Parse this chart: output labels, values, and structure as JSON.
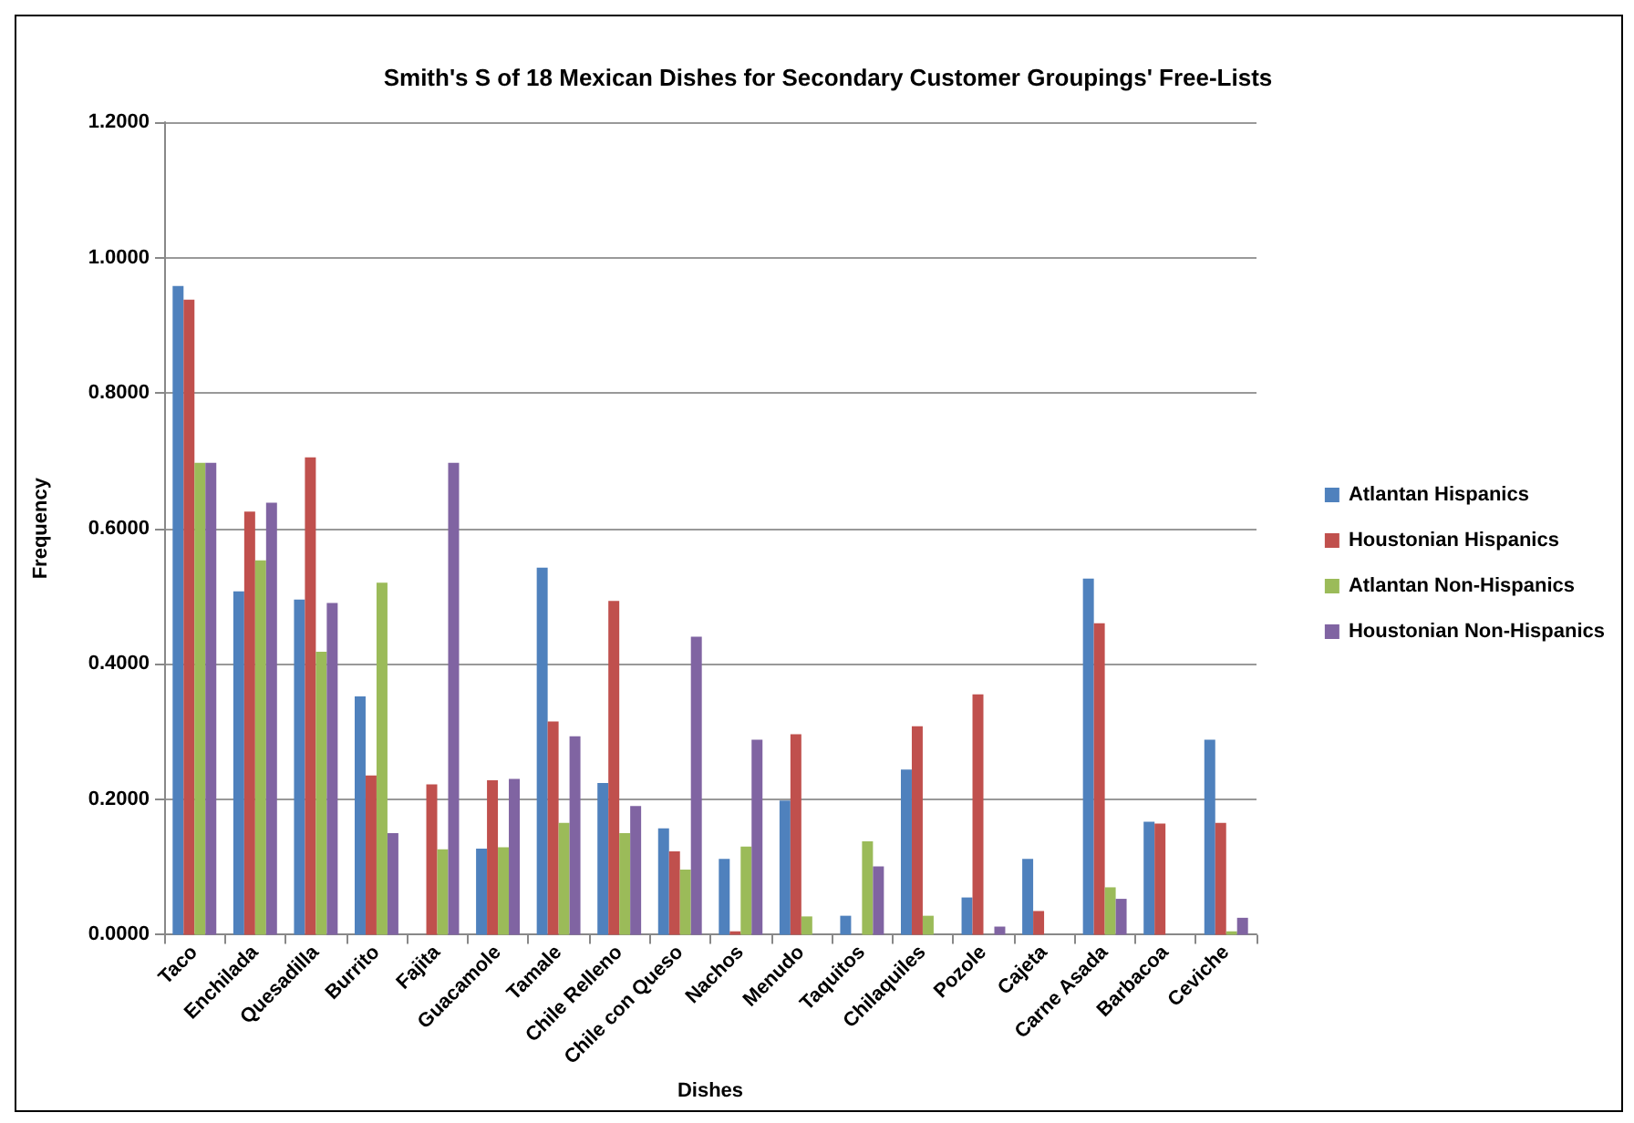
{
  "chart_data": {
    "type": "bar",
    "title": "Smith's S of 18 Mexican Dishes for Secondary Customer Groupings' Free-Lists",
    "xlabel": "Dishes",
    "ylabel": "Frequency",
    "categories": [
      "Taco",
      "Enchilada",
      "Quesadilla",
      "Burrito",
      "Fajita",
      "Guacamole",
      "Tamale",
      "Chile Relleno",
      "Chile con Queso",
      "Nachos",
      "Menudo",
      "Taquitos",
      "Chilaquiles",
      "Pozole",
      "Cajeta",
      "Carne Asada",
      "Barbacoa",
      "Ceviche"
    ],
    "series": [
      {
        "name": "Atlantan Hispanics",
        "color": "#4f81bd",
        "values": [
          0.958,
          0.507,
          0.495,
          0.352,
          0,
          0.127,
          0.542,
          0.224,
          0.157,
          0.112,
          0.198,
          0.028,
          0.244,
          0.055,
          0.112,
          0.526,
          0.167,
          0.288
        ]
      },
      {
        "name": "Houstonian Hispanics",
        "color": "#c0504d",
        "values": [
          0.938,
          0.625,
          0.705,
          0.235,
          0.222,
          0.228,
          0.315,
          0.493,
          0.123,
          0.005,
          0.296,
          0,
          0.308,
          0.355,
          0.035,
          0.46,
          0.164,
          0.165
        ]
      },
      {
        "name": "Atlantan Non-Hispanics",
        "color": "#9bbb59",
        "values": [
          0.697,
          0.553,
          0.418,
          0.52,
          0.126,
          0.129,
          0.165,
          0.15,
          0.096,
          0.13,
          0.027,
          0.138,
          0.028,
          0,
          0,
          0.07,
          0,
          0.005
        ]
      },
      {
        "name": "Houstonian Non-Hispanics",
        "color": "#8064a2",
        "values": [
          0.697,
          0.638,
          0.49,
          0.15,
          0.697,
          0.23,
          0.293,
          0.19,
          0.44,
          0.288,
          0,
          0.101,
          0,
          0.012,
          0,
          0.053,
          0,
          0.025
        ]
      }
    ],
    "ylim": [
      0,
      1.2
    ],
    "yticks": [
      {
        "value": 0,
        "label": "0.0000"
      },
      {
        "value": 0.2,
        "label": "0.2000"
      },
      {
        "value": 0.4,
        "label": "0.4000"
      },
      {
        "value": 0.6,
        "label": "0.6000"
      },
      {
        "value": 0.8,
        "label": "0.8000"
      },
      {
        "value": 1,
        "label": "1.0000"
      },
      {
        "value": 1.2,
        "label": "1.2000"
      }
    ],
    "grid": "y",
    "legend": "right"
  }
}
